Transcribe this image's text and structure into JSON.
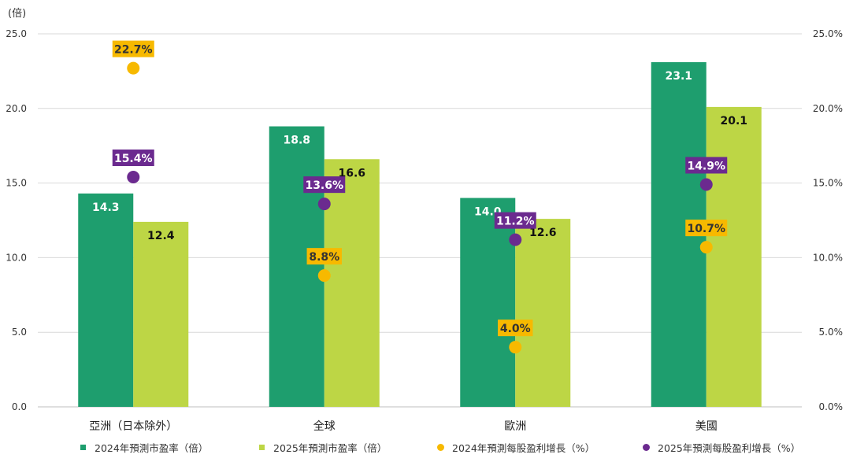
{
  "chart_data": {
    "type": "bar",
    "y_unit_label": "(倍)",
    "categories": [
      "亞洲（日本除外）",
      "全球",
      "歐洲",
      "美國"
    ],
    "ylim": [
      0,
      25
    ],
    "yticks": [
      "0.0",
      "5.0",
      "10.0",
      "15.0",
      "20.0",
      "25.0"
    ],
    "y2lim": [
      0,
      25
    ],
    "y2ticks": [
      "0.0%",
      "5.0%",
      "10.0%",
      "15.0%",
      "20.0%",
      "25.0%"
    ],
    "grid": true,
    "legend_position": "bottom",
    "series": [
      {
        "name": "2024年預測市盈率（倍）",
        "kind": "bar",
        "color": "#1e9e6e",
        "label_color": "#ffffff",
        "values": [
          14.3,
          18.8,
          14.0,
          23.1
        ],
        "labels": [
          "14.3",
          "18.8",
          "14.0",
          "23.1"
        ]
      },
      {
        "name": "2025年預測市盈率（倍）",
        "kind": "bar",
        "color": "#bdd645",
        "label_color": "#111111",
        "values": [
          12.4,
          16.6,
          12.6,
          20.1
        ],
        "labels": [
          "12.4",
          "16.6",
          "12.6",
          "20.1"
        ]
      },
      {
        "name": "2024年預測每股盈利增長（%）",
        "kind": "point",
        "axis": "right",
        "color": "#f7b900",
        "label_bg": "#f7b900",
        "label_color": "#333333",
        "values": [
          22.7,
          8.8,
          4.0,
          10.7
        ],
        "labels": [
          "22.7%",
          "8.8%",
          "4.0%",
          "10.7%"
        ]
      },
      {
        "name": "2025年預測每股盈利增長（%）",
        "kind": "point",
        "axis": "right",
        "color": "#6b2a8f",
        "label_bg": "#6b2a8f",
        "label_color": "#ffffff",
        "values": [
          15.4,
          13.6,
          11.2,
          14.9
        ],
        "labels": [
          "15.4%",
          "13.6%",
          "11.2%",
          "14.9%"
        ]
      }
    ]
  }
}
